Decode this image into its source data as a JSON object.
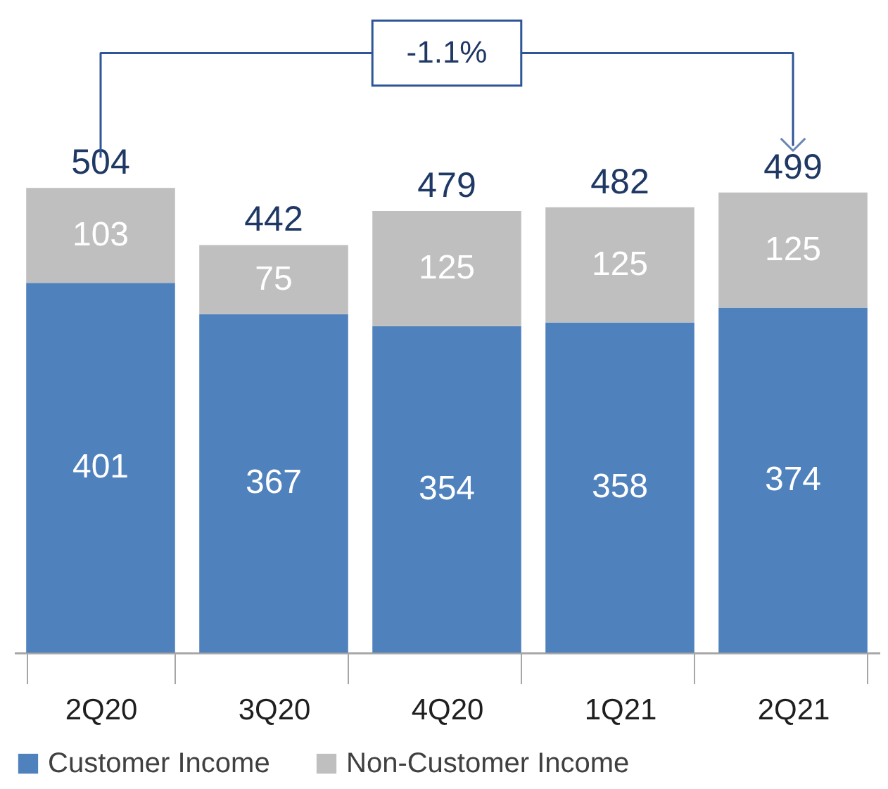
{
  "chart_data": {
    "type": "bar",
    "stacked": true,
    "categories": [
      "2Q20",
      "3Q20",
      "4Q20",
      "1Q21",
      "2Q21"
    ],
    "series": [
      {
        "name": "Customer Income",
        "color": "#4f81bd",
        "values": [
          401,
          367,
          354,
          358,
          374
        ]
      },
      {
        "name": "Non-Customer Income",
        "color": "#bfbfbf",
        "values": [
          103,
          75,
          125,
          125,
          125
        ]
      }
    ],
    "totals": [
      "504",
      "442",
      "479",
      "482",
      "499"
    ],
    "data_labels": true,
    "legend": "bottom",
    "tick_labels": "x",
    "annotations": [
      "-1.1%"
    ]
  }
}
